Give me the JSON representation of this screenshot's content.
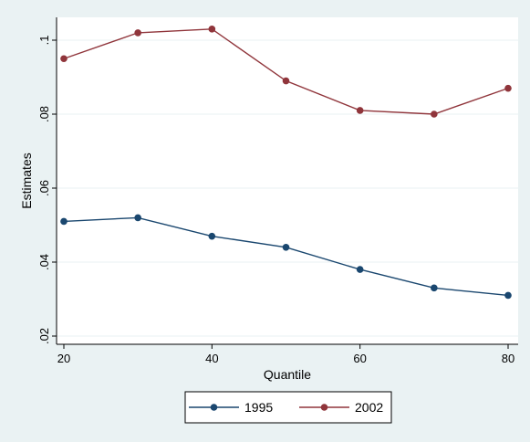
{
  "chart_data": {
    "type": "line",
    "xlabel": "Quantile",
    "ylabel": "Estimates",
    "x": [
      20,
      30,
      40,
      50,
      60,
      70,
      80
    ],
    "xticks": [
      20,
      40,
      60,
      80
    ],
    "xtick_labels": [
      "20",
      "40",
      "60",
      "80"
    ],
    "yticks": [
      0.02,
      0.04,
      0.06,
      0.08,
      0.1
    ],
    "ytick_labels": [
      ".02",
      ".04",
      ".06",
      ".08",
      ".1"
    ],
    "xlim": [
      20,
      80
    ],
    "ylim": [
      0.02,
      0.1
    ],
    "grid": true,
    "legend_position": "bottom",
    "series": [
      {
        "name": "1995",
        "color": "#1a476f",
        "values": [
          0.051,
          0.052,
          0.047,
          0.044,
          0.038,
          0.033,
          0.031
        ]
      },
      {
        "name": "2002",
        "color": "#90353b",
        "values": [
          0.095,
          0.102,
          0.103,
          0.089,
          0.081,
          0.08,
          0.087
        ]
      }
    ]
  }
}
